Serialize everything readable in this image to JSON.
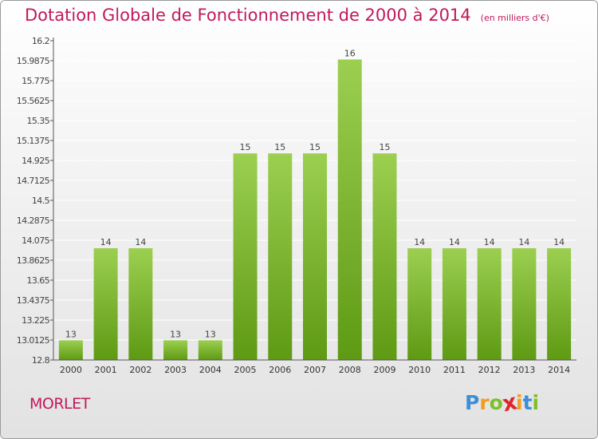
{
  "chart_data": {
    "type": "bar",
    "title": "Dotation Globale de Fonctionnement de 2000 à 2014",
    "unit_note": "(en milliers d'€)",
    "categories": [
      "2000",
      "2001",
      "2002",
      "2003",
      "2004",
      "2005",
      "2006",
      "2007",
      "2008",
      "2009",
      "2010",
      "2011",
      "2012",
      "2013",
      "2014"
    ],
    "values": [
      13.01,
      13.99,
      13.99,
      13.01,
      13.01,
      15.0,
      15.0,
      15.0,
      16.0,
      15.0,
      13.99,
      13.99,
      13.99,
      13.99,
      13.99
    ],
    "data_labels": [
      "13",
      "14",
      "14",
      "13",
      "13",
      "15",
      "15",
      "15",
      "16",
      "15",
      "14",
      "14",
      "14",
      "14",
      "14"
    ],
    "yticks": [
      "12.8",
      "13.0125",
      "13.225",
      "13.4375",
      "13.65",
      "13.8625",
      "14.075",
      "14.2875",
      "14.5",
      "14.7125",
      "14.925",
      "15.1375",
      "15.35",
      "15.5625",
      "15.775",
      "15.9875",
      "16.2"
    ],
    "ylim": [
      12.8,
      16.2
    ],
    "grid": true,
    "legend": "none",
    "colors": {
      "bar_light": "#9ccf50",
      "bar_dark": "#5e9a14",
      "grid": "#ffffff",
      "axis": "#555555",
      "title": "#c2185b"
    }
  },
  "commune": "MORLET",
  "brand": {
    "letters": [
      "P",
      "r",
      "o",
      "x",
      "i",
      "t",
      "i"
    ],
    "colors": [
      "#3b8fd6",
      "#f39c1d",
      "#7cbf2a",
      "#e0242a",
      "#f39c1d",
      "#3b8fd6",
      "#7cbf2a"
    ]
  }
}
